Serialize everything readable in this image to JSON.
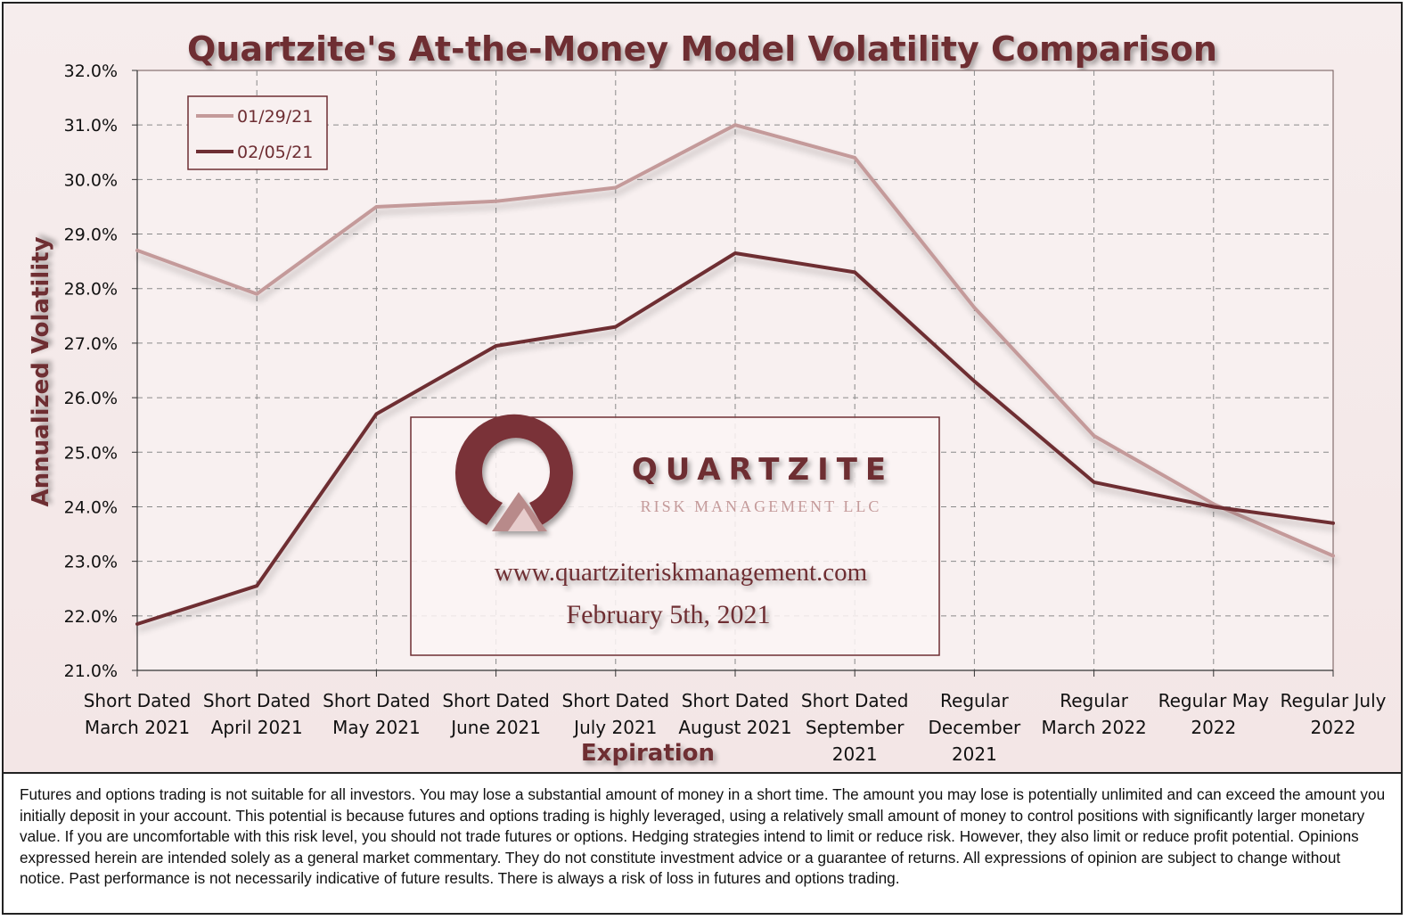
{
  "chart_data": {
    "type": "line",
    "title": "Quartzite's At-the-Money Model Volatility Comparison",
    "xlabel": "Expiration",
    "ylabel": "Annualized Volatility",
    "categories": [
      [
        "Short Dated",
        "March 2021"
      ],
      [
        "Short Dated",
        "April 2021"
      ],
      [
        "Short Dated",
        "May 2021"
      ],
      [
        "Short Dated",
        "June 2021"
      ],
      [
        "Short Dated",
        "July 2021"
      ],
      [
        "Short Dated",
        "August 2021"
      ],
      [
        "Short Dated",
        "September",
        "2021"
      ],
      [
        "Regular",
        "December",
        "2021"
      ],
      [
        "Regular",
        "March 2022"
      ],
      [
        "Regular May",
        "2022"
      ],
      [
        "Regular July",
        "2022"
      ]
    ],
    "ylim": [
      21.0,
      32.0
    ],
    "ytick_step": 1.0,
    "ytick_format": "percent_1dp",
    "grid": "dashed",
    "legend_position": "top-left",
    "series": [
      {
        "name": "01/29/21",
        "color": "#c49a9a",
        "values": [
          28.7,
          27.9,
          29.5,
          29.6,
          29.85,
          31.0,
          30.4,
          27.65,
          25.3,
          24.05,
          23.1
        ]
      },
      {
        "name": "02/05/21",
        "color": "#6e2e33",
        "values": [
          21.85,
          22.55,
          25.7,
          26.95,
          27.3,
          28.65,
          28.3,
          26.3,
          24.45,
          24.0,
          23.7
        ]
      }
    ]
  },
  "watermark": {
    "company": "QUARTZITE",
    "subtitle": "RISK MANAGEMENT LLC",
    "url": "www.quartziteriskmanagement.com",
    "date": "February 5th, 2021"
  },
  "colors": {
    "title": "#6e2e33",
    "axis_text": "#111111",
    "grid": "#8a8a8a",
    "plot_bg": "#f8f0f0"
  },
  "disclaimer": "Futures and options trading is not suitable for all investors. You may lose a substantial amount of money in a short time. The amount you may lose is potentially unlimited and can exceed the amount you initially deposit in your account. This potential is because futures and options trading is highly leveraged, using a relatively small amount of money to control positions with significantly larger monetary value. If you are uncomfortable with this risk level, you should not trade futures or options. Hedging strategies intend to limit or reduce risk. However, they also limit or reduce profit potential. Opinions expressed herein are intended solely as a general market commentary. They do not constitute investment advice or a guarantee of returns. All expressions of opinion are subject to change without notice. Past performance is not necessarily indicative of future results. There is always a risk of loss in futures and options trading."
}
